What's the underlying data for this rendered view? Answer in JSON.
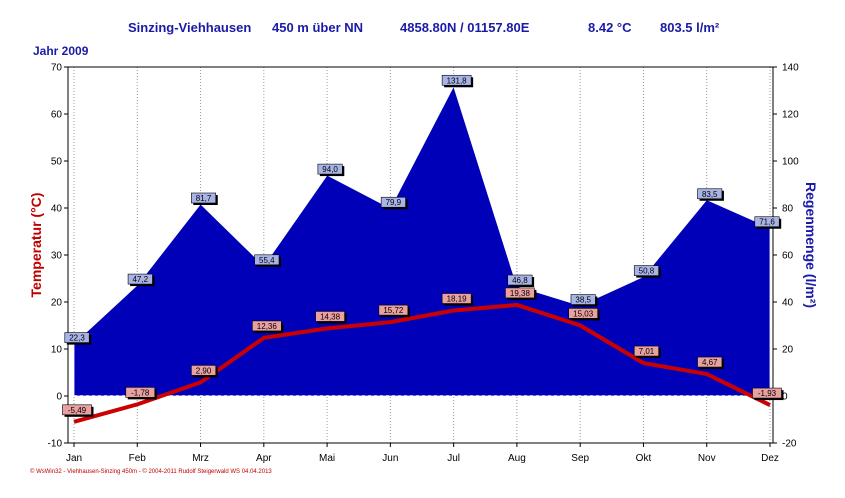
{
  "header": {
    "station": "Sinzing-Viehhausen",
    "altitude": "450 m über NN",
    "coords": "4858.80N / 01157.80E",
    "mean_temp": "8.42 °C",
    "precip_total": "803.5 l/m²",
    "year": "Jahr  2009"
  },
  "footer": "© WsWin32 - Viehhausen-Sinzing 450m - © 2004-2011 Rudolf Steigerwald WS  04.04.2013",
  "colors": {
    "rain_fill": "#0000b8",
    "temp_line": "#cc0000",
    "temp_label": "#c00000",
    "rain_label": "#1a1aa8"
  },
  "chart_data": {
    "type": "area",
    "categories": [
      "Jan",
      "Feb",
      "Mrz",
      "Apr",
      "Mai",
      "Jun",
      "Jul",
      "Aug",
      "Sep",
      "Okt",
      "Nov",
      "Dez"
    ],
    "series": [
      {
        "name": "Regenmenge",
        "axis": "right",
        "type": "area",
        "values": [
          22.3,
          47.2,
          81.7,
          55.4,
          94.0,
          79.9,
          131.8,
          46.8,
          38.5,
          50.8,
          83.5,
          71.6
        ],
        "labels": [
          "22,3",
          "47,2",
          "81,7",
          "55,4",
          "94,0",
          "79,9",
          "131,8",
          "46,8",
          "38,5",
          "50,8",
          "83,5",
          "71,6"
        ]
      },
      {
        "name": "Temperatur",
        "axis": "left",
        "type": "line",
        "values": [
          -5.49,
          -1.78,
          2.9,
          12.36,
          14.38,
          15.72,
          18.19,
          19.38,
          15.03,
          7.01,
          4.67,
          -1.93
        ],
        "labels": [
          "-5,49",
          "-1,78",
          "2,90",
          "12,36",
          "14,38",
          "15,72",
          "18,19",
          "19,38",
          "15,03",
          "7,01",
          "4,67",
          "-1,93"
        ]
      }
    ],
    "ylabel": "Temperatur  (°C)",
    "y2label": "Regenmenge  (l/m²)",
    "ylim": [
      -10,
      70
    ],
    "y2lim": [
      -20,
      140
    ],
    "yticks": [
      -10,
      0,
      10,
      20,
      30,
      40,
      50,
      60,
      70
    ],
    "y2ticks": [
      -20,
      0,
      20,
      40,
      60,
      80,
      100,
      120,
      140
    ]
  }
}
